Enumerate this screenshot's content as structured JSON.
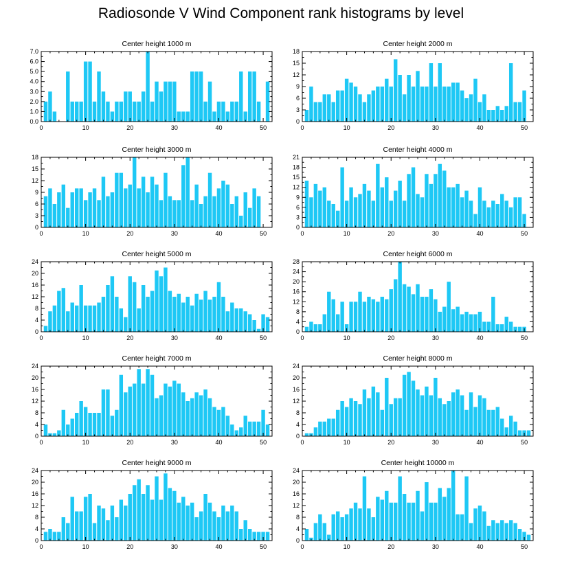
{
  "figure_title": "Radiosonde V Wind Component rank histograms by level",
  "colors": {
    "bar": "#1ec8f5",
    "axis": "#000000",
    "background": "#ffffff"
  },
  "chart_data": [
    {
      "type": "bar",
      "title": "Center height 1000 m",
      "x": [
        1,
        2,
        3,
        4,
        5,
        6,
        7,
        8,
        9,
        10,
        11,
        12,
        13,
        14,
        15,
        16,
        17,
        18,
        19,
        20,
        21,
        22,
        23,
        24,
        25,
        26,
        27,
        28,
        29,
        30,
        31,
        32,
        33,
        34,
        35,
        36,
        37,
        38,
        39,
        40,
        41,
        42,
        43,
        44,
        45,
        46,
        47,
        48,
        49,
        50,
        51
      ],
      "values": [
        2,
        3,
        1,
        0,
        0,
        5,
        2,
        2,
        2,
        6,
        6,
        2,
        5,
        3,
        2,
        1,
        2,
        2,
        3,
        3,
        2,
        2,
        3,
        7,
        2,
        4,
        3,
        4,
        4,
        4,
        1,
        1,
        1,
        5,
        5,
        5,
        2,
        4,
        1,
        2,
        2,
        1,
        2,
        2,
        5,
        1,
        5,
        5,
        2,
        0,
        4
      ],
      "xlim": [
        0,
        52
      ],
      "ylim": [
        0,
        7
      ],
      "xticks": [
        0,
        10,
        20,
        30,
        40,
        50
      ],
      "yticks": [
        0,
        1,
        2,
        3,
        4,
        5,
        6,
        7
      ],
      "ytick_labels": [
        "0.0",
        "1.0",
        "2.0",
        "3.0",
        "4.0",
        "5.0",
        "6.0",
        "7.0"
      ]
    },
    {
      "type": "bar",
      "title": "Center height 2000 m",
      "x": [
        1,
        2,
        3,
        4,
        5,
        6,
        7,
        8,
        9,
        10,
        11,
        12,
        13,
        14,
        15,
        16,
        17,
        18,
        19,
        20,
        21,
        22,
        23,
        24,
        25,
        26,
        27,
        28,
        29,
        30,
        31,
        32,
        33,
        34,
        35,
        36,
        37,
        38,
        39,
        40,
        41,
        42,
        43,
        44,
        45,
        46,
        47,
        48,
        49,
        50,
        51
      ],
      "values": [
        3,
        9,
        5,
        5,
        7,
        7,
        5,
        8,
        8,
        11,
        10,
        9,
        7,
        5,
        7,
        8,
        9,
        9,
        11,
        9,
        16,
        12,
        7,
        12,
        9,
        13,
        9,
        9,
        15,
        9,
        15,
        9,
        9,
        10,
        10,
        8,
        6,
        7,
        11,
        5,
        7,
        3,
        3,
        4,
        3,
        4,
        15,
        5,
        5,
        8,
        0
      ],
      "xlim": [
        0,
        52
      ],
      "ylim": [
        0,
        18
      ],
      "xticks": [
        0,
        10,
        20,
        30,
        40,
        50
      ],
      "yticks": [
        0,
        3,
        6,
        9,
        12,
        15,
        18
      ],
      "ytick_labels": [
        "0",
        "3",
        "6",
        "9",
        "12",
        "15",
        "18"
      ]
    },
    {
      "type": "bar",
      "title": "Center height 3000 m",
      "x": [
        1,
        2,
        3,
        4,
        5,
        6,
        7,
        8,
        9,
        10,
        11,
        12,
        13,
        14,
        15,
        16,
        17,
        18,
        19,
        20,
        21,
        22,
        23,
        24,
        25,
        26,
        27,
        28,
        29,
        30,
        31,
        32,
        33,
        34,
        35,
        36,
        37,
        38,
        39,
        40,
        41,
        42,
        43,
        44,
        45,
        46,
        47,
        48,
        49,
        50,
        51
      ],
      "values": [
        8,
        10,
        6,
        9,
        11,
        5,
        9,
        10,
        10,
        7,
        9,
        10,
        7,
        13,
        8,
        9,
        14,
        14,
        10,
        11,
        18,
        10,
        13,
        9,
        13,
        11,
        7,
        14,
        8,
        7,
        7,
        16,
        18,
        7,
        11,
        6,
        8,
        14,
        8,
        10,
        12,
        11,
        6,
        8,
        3,
        9,
        5,
        10,
        8,
        0,
        0
      ],
      "xlim": [
        0,
        52
      ],
      "ylim": [
        0,
        18
      ],
      "xticks": [
        0,
        10,
        20,
        30,
        40,
        50
      ],
      "yticks": [
        0,
        3,
        6,
        9,
        12,
        15,
        18
      ],
      "ytick_labels": [
        "0",
        "3",
        "6",
        "9",
        "12",
        "15",
        "18"
      ]
    },
    {
      "type": "bar",
      "title": "Center height 4000 m",
      "x": [
        1,
        2,
        3,
        4,
        5,
        6,
        7,
        8,
        9,
        10,
        11,
        12,
        13,
        14,
        15,
        16,
        17,
        18,
        19,
        20,
        21,
        22,
        23,
        24,
        25,
        26,
        27,
        28,
        29,
        30,
        31,
        32,
        33,
        34,
        35,
        36,
        37,
        38,
        39,
        40,
        41,
        42,
        43,
        44,
        45,
        46,
        47,
        48,
        49,
        50,
        51
      ],
      "values": [
        14,
        9,
        13,
        11,
        12,
        8,
        7,
        5,
        18,
        8,
        12,
        9,
        10,
        13,
        11,
        8,
        19,
        12,
        15,
        8,
        11,
        14,
        8,
        16,
        18,
        10,
        9,
        16,
        13,
        16,
        19,
        17,
        12,
        12,
        13,
        9,
        11,
        8,
        4,
        12,
        8,
        6,
        8,
        7,
        10,
        8,
        6,
        9,
        9,
        4,
        0
      ],
      "xlim": [
        0,
        52
      ],
      "ylim": [
        0,
        21
      ],
      "xticks": [
        0,
        10,
        20,
        30,
        40,
        50
      ],
      "yticks": [
        0,
        3,
        6,
        9,
        12,
        15,
        18,
        21
      ],
      "ytick_labels": [
        "0",
        "3",
        "6",
        "9",
        "12",
        "15",
        "18",
        "21"
      ]
    },
    {
      "type": "bar",
      "title": "Center height 5000 m",
      "x": [
        1,
        2,
        3,
        4,
        5,
        6,
        7,
        8,
        9,
        10,
        11,
        12,
        13,
        14,
        15,
        16,
        17,
        18,
        19,
        20,
        21,
        22,
        23,
        24,
        25,
        26,
        27,
        28,
        29,
        30,
        31,
        32,
        33,
        34,
        35,
        36,
        37,
        38,
        39,
        40,
        41,
        42,
        43,
        44,
        45,
        46,
        47,
        48,
        49,
        50,
        51
      ],
      "values": [
        2,
        7,
        9,
        14,
        15,
        7,
        10,
        9,
        16,
        9,
        9,
        9,
        10,
        12,
        16,
        19,
        12,
        8,
        5,
        19,
        17,
        8,
        16,
        12,
        14,
        21,
        19,
        22,
        14,
        12,
        13,
        10,
        12,
        9,
        13,
        11,
        14,
        11,
        12,
        17,
        12,
        7,
        10,
        8,
        8,
        7,
        6,
        4,
        1,
        6,
        5
      ],
      "xlim": [
        0,
        52
      ],
      "ylim": [
        0,
        24
      ],
      "xticks": [
        0,
        10,
        20,
        30,
        40,
        50
      ],
      "yticks": [
        0,
        4,
        8,
        12,
        16,
        20,
        24
      ],
      "ytick_labels": [
        "0",
        "4",
        "8",
        "12",
        "16",
        "20",
        "24"
      ]
    },
    {
      "type": "bar",
      "title": "Center height 6000 m",
      "x": [
        1,
        2,
        3,
        4,
        5,
        6,
        7,
        8,
        9,
        10,
        11,
        12,
        13,
        14,
        15,
        16,
        17,
        18,
        19,
        20,
        21,
        22,
        23,
        24,
        25,
        26,
        27,
        28,
        29,
        30,
        31,
        32,
        33,
        34,
        35,
        36,
        37,
        38,
        39,
        40,
        41,
        42,
        43,
        44,
        45,
        46,
        47,
        48,
        49,
        50,
        51
      ],
      "values": [
        2,
        4,
        3,
        3,
        7,
        16,
        13,
        7,
        12,
        3,
        12,
        12,
        16,
        12,
        14,
        13,
        12,
        14,
        13,
        17,
        21,
        28,
        19,
        18,
        15,
        19,
        14,
        14,
        17,
        13,
        8,
        10,
        20,
        9,
        10,
        7,
        8,
        7,
        7,
        8,
        4,
        4,
        14,
        3,
        3,
        6,
        4,
        2,
        2,
        2,
        0
      ],
      "xlim": [
        0,
        52
      ],
      "ylim": [
        0,
        28
      ],
      "xticks": [
        0,
        10,
        20,
        30,
        40,
        50
      ],
      "yticks": [
        0,
        4,
        8,
        12,
        16,
        20,
        24,
        28
      ],
      "ytick_labels": [
        "0",
        "4",
        "8",
        "12",
        "16",
        "20",
        "24",
        "28"
      ]
    },
    {
      "type": "bar",
      "title": "Center height 7000 m",
      "x": [
        1,
        2,
        3,
        4,
        5,
        6,
        7,
        8,
        9,
        10,
        11,
        12,
        13,
        14,
        15,
        16,
        17,
        18,
        19,
        20,
        21,
        22,
        23,
        24,
        25,
        26,
        27,
        28,
        29,
        30,
        31,
        32,
        33,
        34,
        35,
        36,
        37,
        38,
        39,
        40,
        41,
        42,
        43,
        44,
        45,
        46,
        47,
        48,
        49,
        50,
        51
      ],
      "values": [
        4,
        1,
        1,
        2,
        9,
        4,
        6,
        8,
        12,
        10,
        8,
        8,
        8,
        16,
        16,
        7,
        9,
        21,
        15,
        17,
        18,
        23,
        18,
        23,
        21,
        13,
        14,
        18,
        17,
        19,
        18,
        15,
        12,
        13,
        15,
        14,
        16,
        13,
        10,
        9,
        10,
        7,
        4,
        2,
        3,
        7,
        5,
        5,
        5,
        9,
        4
      ],
      "xlim": [
        0,
        52
      ],
      "ylim": [
        0,
        24
      ],
      "xticks": [
        0,
        10,
        20,
        30,
        40,
        50
      ],
      "yticks": [
        0,
        4,
        8,
        12,
        16,
        20,
        24
      ],
      "ytick_labels": [
        "0",
        "4",
        "8",
        "12",
        "16",
        "20",
        "24"
      ]
    },
    {
      "type": "bar",
      "title": "Center height 8000 m",
      "x": [
        1,
        2,
        3,
        4,
        5,
        6,
        7,
        8,
        9,
        10,
        11,
        12,
        13,
        14,
        15,
        16,
        17,
        18,
        19,
        20,
        21,
        22,
        23,
        24,
        25,
        26,
        27,
        28,
        29,
        30,
        31,
        32,
        33,
        34,
        35,
        36,
        37,
        38,
        39,
        40,
        41,
        42,
        43,
        44,
        45,
        46,
        47,
        48,
        49,
        50,
        51
      ],
      "values": [
        1,
        1,
        3,
        5,
        5,
        6,
        6,
        9,
        12,
        10,
        13,
        12,
        11,
        16,
        13,
        17,
        15,
        9,
        20,
        11,
        13,
        13,
        21,
        22,
        19,
        16,
        14,
        17,
        14,
        20,
        13,
        11,
        12,
        15,
        16,
        14,
        9,
        15,
        10,
        14,
        13,
        9,
        9,
        10,
        6,
        3,
        7,
        5,
        2,
        2,
        2
      ],
      "xlim": [
        0,
        52
      ],
      "ylim": [
        0,
        24
      ],
      "xticks": [
        0,
        10,
        20,
        30,
        40,
        50
      ],
      "yticks": [
        0,
        4,
        8,
        12,
        16,
        20,
        24
      ],
      "ytick_labels": [
        "0",
        "4",
        "8",
        "12",
        "16",
        "20",
        "24"
      ]
    },
    {
      "type": "bar",
      "title": "Center height 9000 m",
      "x": [
        1,
        2,
        3,
        4,
        5,
        6,
        7,
        8,
        9,
        10,
        11,
        12,
        13,
        14,
        15,
        16,
        17,
        18,
        19,
        20,
        21,
        22,
        23,
        24,
        25,
        26,
        27,
        28,
        29,
        30,
        31,
        32,
        33,
        34,
        35,
        36,
        37,
        38,
        39,
        40,
        41,
        42,
        43,
        44,
        45,
        46,
        47,
        48,
        49,
        50,
        51
      ],
      "values": [
        3,
        4,
        3,
        3,
        8,
        6,
        15,
        10,
        10,
        15,
        16,
        6,
        12,
        11,
        7,
        12,
        8,
        14,
        12,
        16,
        19,
        21,
        16,
        19,
        14,
        22,
        14,
        23,
        18,
        17,
        13,
        15,
        12,
        13,
        8,
        10,
        16,
        13,
        10,
        8,
        12,
        10,
        12,
        10,
        4,
        7,
        4,
        3,
        3,
        3,
        3
      ],
      "xlim": [
        0,
        52
      ],
      "ylim": [
        0,
        24
      ],
      "xticks": [
        0,
        10,
        20,
        30,
        40,
        50
      ],
      "yticks": [
        0,
        4,
        8,
        12,
        16,
        20,
        24
      ],
      "ytick_labels": [
        "0",
        "4",
        "8",
        "12",
        "16",
        "20",
        "24"
      ]
    },
    {
      "type": "bar",
      "title": "Center height 10000 m",
      "x": [
        1,
        2,
        3,
        4,
        5,
        6,
        7,
        8,
        9,
        10,
        11,
        12,
        13,
        14,
        15,
        16,
        17,
        18,
        19,
        20,
        21,
        22,
        23,
        24,
        25,
        26,
        27,
        28,
        29,
        30,
        31,
        32,
        33,
        34,
        35,
        36,
        37,
        38,
        39,
        40,
        41,
        42,
        43,
        44,
        45,
        46,
        47,
        48,
        49,
        50,
        51
      ],
      "values": [
        4,
        1,
        6,
        9,
        6,
        2,
        9,
        10,
        8,
        9,
        11,
        13,
        11,
        22,
        11,
        8,
        15,
        14,
        17,
        13,
        13,
        22,
        16,
        13,
        13,
        17,
        10,
        20,
        13,
        13,
        18,
        15,
        18,
        24,
        9,
        9,
        22,
        6,
        11,
        12,
        10,
        5,
        7,
        6,
        7,
        6,
        7,
        6,
        4,
        3,
        2
      ],
      "xlim": [
        0,
        52
      ],
      "ylim": [
        0,
        24
      ],
      "xticks": [
        0,
        10,
        20,
        30,
        40,
        50
      ],
      "yticks": [
        0,
        4,
        8,
        12,
        16,
        20,
        24
      ],
      "ytick_labels": [
        "0",
        "4",
        "8",
        "12",
        "16",
        "20",
        "24"
      ]
    }
  ]
}
